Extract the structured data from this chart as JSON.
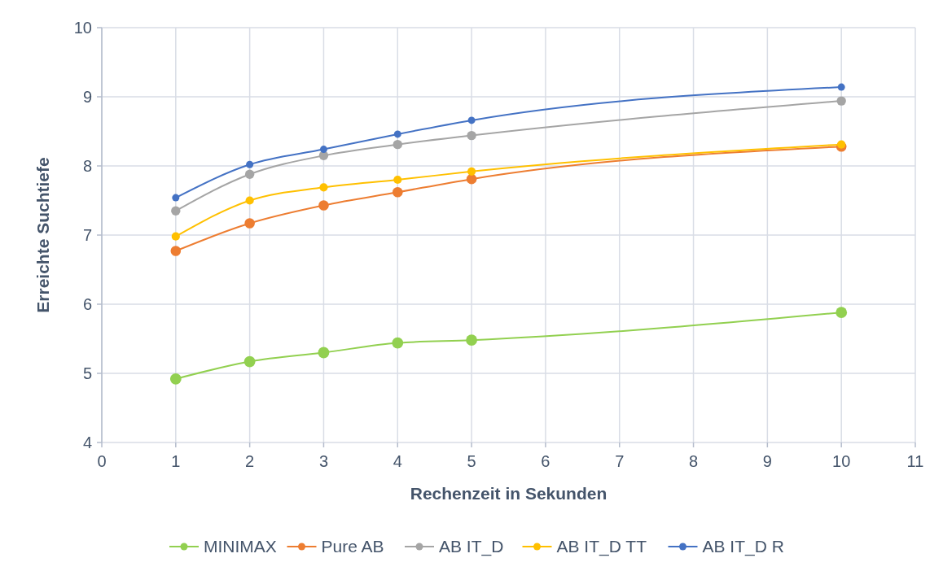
{
  "chart_data": {
    "type": "line",
    "xlabel": "Rechenzeit in Sekunden",
    "ylabel": "Erreichte Suchtiefe",
    "x": [
      1,
      2,
      3,
      4,
      5,
      10
    ],
    "xlim": [
      0,
      11
    ],
    "xticks": [
      0,
      1,
      2,
      3,
      4,
      5,
      6,
      7,
      8,
      9,
      10,
      11
    ],
    "ylim": [
      4,
      10
    ],
    "yticks": [
      4,
      5,
      6,
      7,
      8,
      9,
      10
    ],
    "grid": true,
    "legend": "bottom",
    "marker": "circle",
    "line_style": "solid",
    "series": [
      {
        "name": "MINIMAX",
        "color": "#92d050",
        "values": [
          4.92,
          5.17,
          5.3,
          5.44,
          5.48,
          5.88
        ]
      },
      {
        "name": "Pure AB",
        "color": "#ed7d31",
        "values": [
          6.77,
          7.17,
          7.43,
          7.62,
          7.81,
          8.28
        ]
      },
      {
        "name": "AB IT_D",
        "color": "#a5a5a5",
        "values": [
          7.35,
          7.88,
          8.15,
          8.31,
          8.44,
          8.94
        ]
      },
      {
        "name": "AB IT_D TT",
        "color": "#ffc000",
        "values": [
          6.98,
          7.5,
          7.69,
          7.8,
          7.92,
          8.31
        ]
      },
      {
        "name": "AB IT_D R",
        "color": "#4472c4",
        "values": [
          7.54,
          8.02,
          8.24,
          8.46,
          8.66,
          9.14
        ]
      }
    ]
  }
}
